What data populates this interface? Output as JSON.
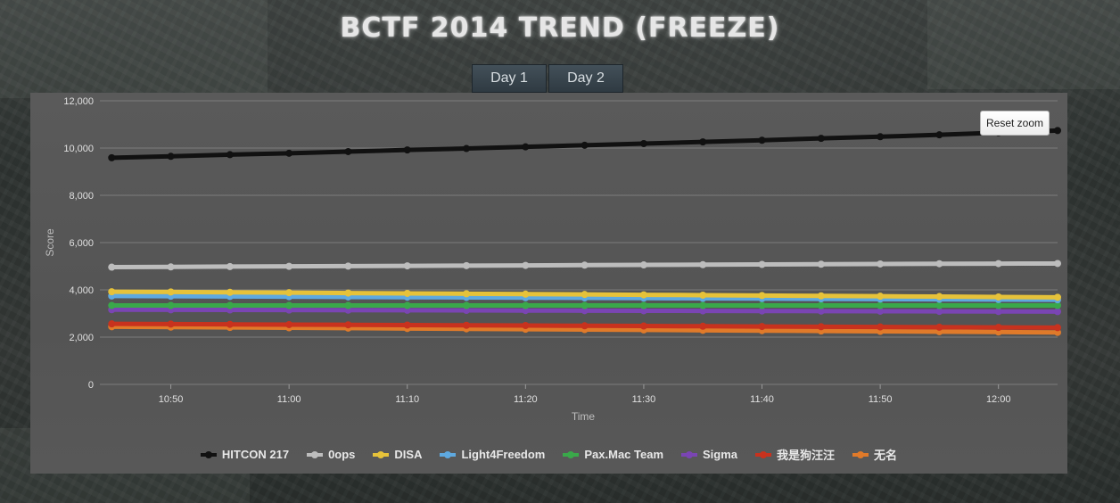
{
  "page": {
    "title": "BCTF 2014 TREND (FREEZE)",
    "tabs": [
      "Day 1",
      "Day 2"
    ],
    "reset_zoom": "Reset zoom"
  },
  "chart_data": {
    "type": "line",
    "title": "",
    "xlabel": "Time",
    "ylabel": "Score",
    "ylim": [
      0,
      12000
    ],
    "yticks": [
      "0",
      "2,000",
      "4,000",
      "6,000",
      "8,000",
      "10,000",
      "12,000"
    ],
    "xticks": [
      "10:50",
      "11:00",
      "11:10",
      "11:20",
      "11:30",
      "11:40",
      "11:50",
      "12:00"
    ],
    "x": [
      "10:45",
      "10:50",
      "10:55",
      "11:00",
      "11:05",
      "11:10",
      "11:15",
      "11:20",
      "11:25",
      "11:30",
      "11:35",
      "11:40",
      "11:45",
      "11:50",
      "11:55",
      "12:00",
      "12:05"
    ],
    "xlim": [
      "10:44",
      "12:05"
    ],
    "grid": true,
    "legend_position": "bottom",
    "series": [
      {
        "name": "HITCON 217",
        "color": "#111111",
        "values": [
          9590,
          9650,
          9720,
          9780,
          9850,
          9920,
          9980,
          10050,
          10120,
          10190,
          10260,
          10330,
          10410,
          10480,
          10560,
          10650,
          10740
        ]
      },
      {
        "name": "0ops",
        "color": "#bdbdbd",
        "values": [
          4960,
          4970,
          4985,
          4995,
          5005,
          5015,
          5025,
          5035,
          5045,
          5055,
          5065,
          5075,
          5085,
          5095,
          5105,
          5110,
          5115
        ]
      },
      {
        "name": "DISA",
        "color": "#e6c23a",
        "values": [
          3920,
          3910,
          3895,
          3880,
          3865,
          3850,
          3835,
          3820,
          3805,
          3790,
          3775,
          3760,
          3745,
          3730,
          3715,
          3700,
          3685
        ]
      },
      {
        "name": "Light4Freedom",
        "color": "#5ea9e0",
        "values": [
          3740,
          3730,
          3720,
          3710,
          3700,
          3690,
          3680,
          3670,
          3660,
          3650,
          3640,
          3630,
          3620,
          3610,
          3600,
          3590,
          3580
        ]
      },
      {
        "name": "Pax.Mac Team",
        "color": "#3aa84a",
        "values": [
          3340,
          3340,
          3340,
          3340,
          3340,
          3340,
          3340,
          3340,
          3340,
          3340,
          3340,
          3340,
          3340,
          3340,
          3340,
          3340,
          3340
        ]
      },
      {
        "name": "Sigma",
        "color": "#7a45b3",
        "values": [
          3160,
          3155,
          3150,
          3145,
          3140,
          3135,
          3130,
          3125,
          3120,
          3115,
          3110,
          3105,
          3100,
          3095,
          3090,
          3085,
          3080
        ]
      },
      {
        "name": "我是狗汪汪",
        "color": "#c8321e",
        "values": [
          2560,
          2550,
          2540,
          2530,
          2520,
          2510,
          2500,
          2490,
          2480,
          2470,
          2460,
          2450,
          2440,
          2430,
          2420,
          2410,
          2400
        ]
      },
      {
        "name": "无名",
        "color": "#e07a2a",
        "values": [
          2440,
          2425,
          2410,
          2395,
          2380,
          2365,
          2350,
          2335,
          2320,
          2305,
          2290,
          2275,
          2260,
          2245,
          2230,
          2215,
          2200
        ]
      }
    ]
  }
}
